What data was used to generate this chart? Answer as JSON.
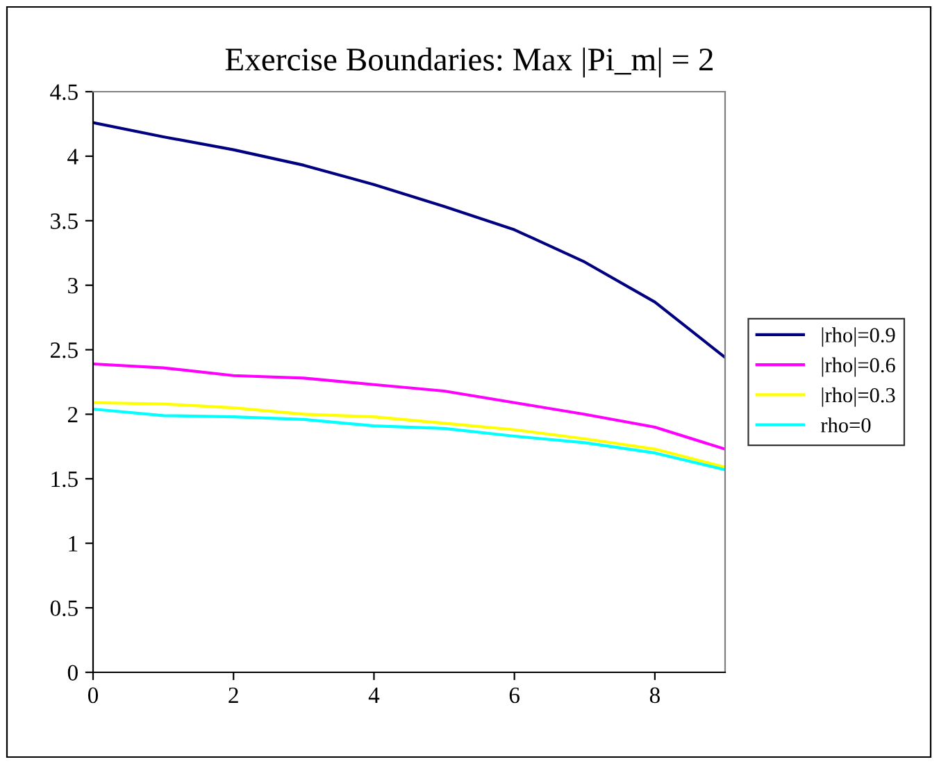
{
  "chart_data": {
    "type": "line",
    "title": "Exercise Boundaries: Max |Pi_m| = 2",
    "x": [
      0,
      1,
      2,
      3,
      4,
      5,
      6,
      7,
      8,
      9
    ],
    "series": [
      {
        "name": "|rho|=0.9",
        "color": "#000080",
        "values": [
          4.26,
          4.15,
          4.05,
          3.93,
          3.78,
          3.61,
          3.43,
          3.18,
          2.87,
          2.44
        ]
      },
      {
        "name": "|rho|=0.6",
        "color": "#ff00ff",
        "values": [
          2.39,
          2.36,
          2.3,
          2.28,
          2.23,
          2.18,
          2.09,
          2.0,
          1.9,
          1.73
        ]
      },
      {
        "name": "|rho|=0.3",
        "color": "#ffff00",
        "values": [
          2.09,
          2.08,
          2.05,
          2.0,
          1.98,
          1.93,
          1.88,
          1.81,
          1.73,
          1.59
        ]
      },
      {
        "name": "rho=0",
        "color": "#00ffff",
        "values": [
          2.04,
          1.99,
          1.98,
          1.96,
          1.91,
          1.89,
          1.83,
          1.78,
          1.7,
          1.57
        ]
      }
    ],
    "xlim": [
      0,
      9
    ],
    "xticks": [
      0,
      2,
      4,
      6,
      8
    ],
    "ylim": [
      0,
      4.5
    ],
    "yticks": [
      0,
      0.5,
      1,
      1.5,
      2,
      2.5,
      3,
      3.5,
      4,
      4.5
    ],
    "grid": false,
    "legend": "right",
    "marker": "none",
    "line_style": "solid"
  }
}
